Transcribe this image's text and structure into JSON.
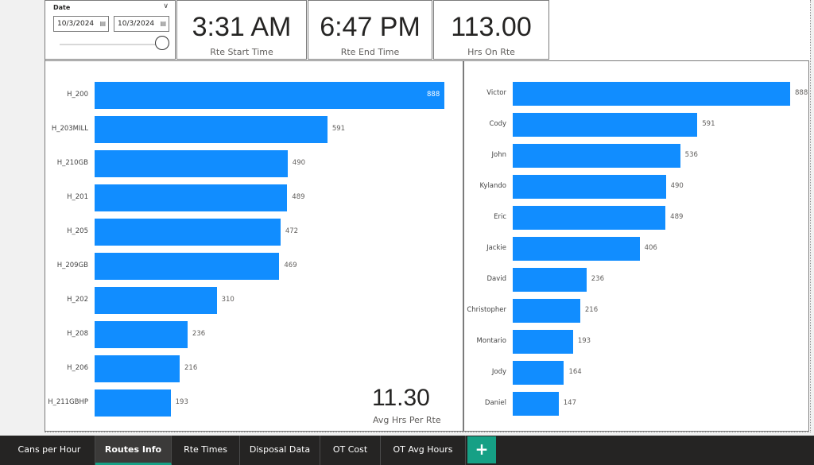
{
  "slicer": {
    "title": "Date",
    "start_date": "10/3/2024",
    "end_date": "10/3/2024",
    "chevron_icon": "chevron-down-icon",
    "calendar_icon": "calendar-icon"
  },
  "cards": [
    {
      "value": "3:31 AM",
      "label": "Rte Start Time"
    },
    {
      "value": "6:47 PM",
      "label": "Rte End Time"
    },
    {
      "value": "113.00",
      "label": "Hrs On Rte"
    }
  ],
  "avg": {
    "value": "11.30",
    "label": "Avg Hrs Per Rte"
  },
  "chart_data": [
    {
      "type": "bar",
      "orientation": "horizontal",
      "categories": [
        "H_200",
        "H_203MILL",
        "H_210GB",
        "H_201",
        "H_205",
        "H_209GB",
        "H_202",
        "H_208",
        "H_206",
        "H_211GBHP"
      ],
      "values": [
        888,
        591,
        490,
        489,
        472,
        469,
        310,
        236,
        216,
        193
      ],
      "color": "#118dff"
    },
    {
      "type": "bar",
      "orientation": "horizontal",
      "categories": [
        "Victor",
        "Cody",
        "John",
        "Kylando",
        "Eric",
        "Jackie",
        "David",
        "Christopher",
        "Montario",
        "Jody",
        "Daniel"
      ],
      "values": [
        888,
        591,
        536,
        490,
        489,
        406,
        236,
        216,
        193,
        164,
        147
      ],
      "color": "#118dff"
    }
  ],
  "tabs": [
    {
      "label": "Cans per Hour",
      "active": false
    },
    {
      "label": "Routes Info",
      "active": true
    },
    {
      "label": "Rte Times",
      "active": false
    },
    {
      "label": "Disposal Data",
      "active": false
    },
    {
      "label": "OT Cost",
      "active": false
    },
    {
      "label": "OT Avg Hours",
      "active": false
    }
  ],
  "add_tab": {
    "label": "+",
    "icon": "plus-icon",
    "color": "#16a085"
  }
}
